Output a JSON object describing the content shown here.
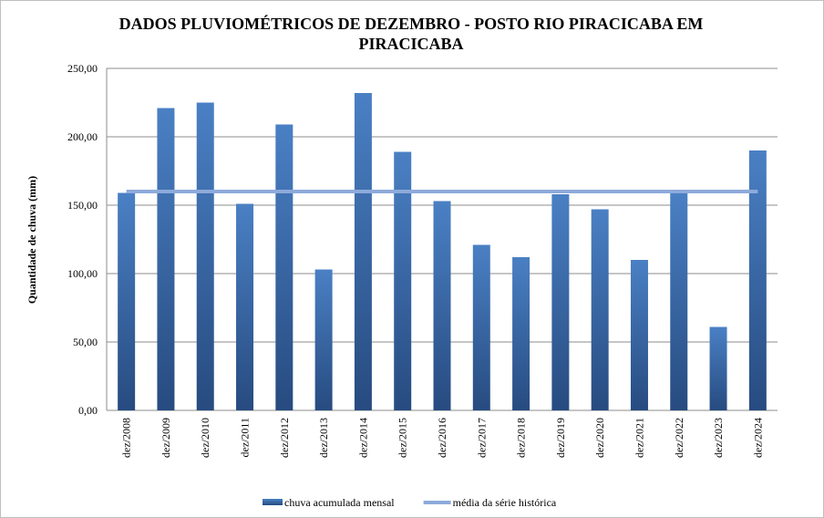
{
  "chart_data": {
    "type": "bar",
    "title": "DADOS PLUVIOMÉTRICOS DE DEZEMBRO - POSTO RIO PIRACICABA EM PIRACICABA",
    "y_label": "Quantidade de chuva (mm)",
    "categories": [
      "dez/2008",
      "dez/2009",
      "dez/2010",
      "dez/2011",
      "dez/2012",
      "dez/2013",
      "dez/2014",
      "dez/2015",
      "dez/2016",
      "dez/2017",
      "dez/2018",
      "dez/2019",
      "dez/2020",
      "dez/2021",
      "dez/2022",
      "dez/2023",
      "dez/2024"
    ],
    "series": [
      {
        "name": "chuva acumulada mensal",
        "type": "bar",
        "color": "#3a68a8",
        "values": [
          159,
          221,
          225,
          151,
          209,
          103,
          232,
          189,
          153,
          121,
          112,
          158,
          147,
          110,
          159,
          61,
          190
        ]
      },
      {
        "name": "média da série histórica",
        "type": "line",
        "color": "#8eaadb",
        "values": [
          160,
          160,
          160,
          160,
          160,
          160,
          160,
          160,
          160,
          160,
          160,
          160,
          160,
          160,
          160,
          160,
          160
        ]
      }
    ],
    "ylim": [
      0,
      250
    ],
    "yticks": [
      {
        "value": 0,
        "label": "0,00"
      },
      {
        "value": 50,
        "label": "50,00"
      },
      {
        "value": 100,
        "label": "100,00"
      },
      {
        "value": 150,
        "label": "150,00"
      },
      {
        "value": 200,
        "label": "200,00"
      },
      {
        "value": 250,
        "label": "250,00"
      }
    ],
    "grid": true,
    "legend": "bottom"
  }
}
